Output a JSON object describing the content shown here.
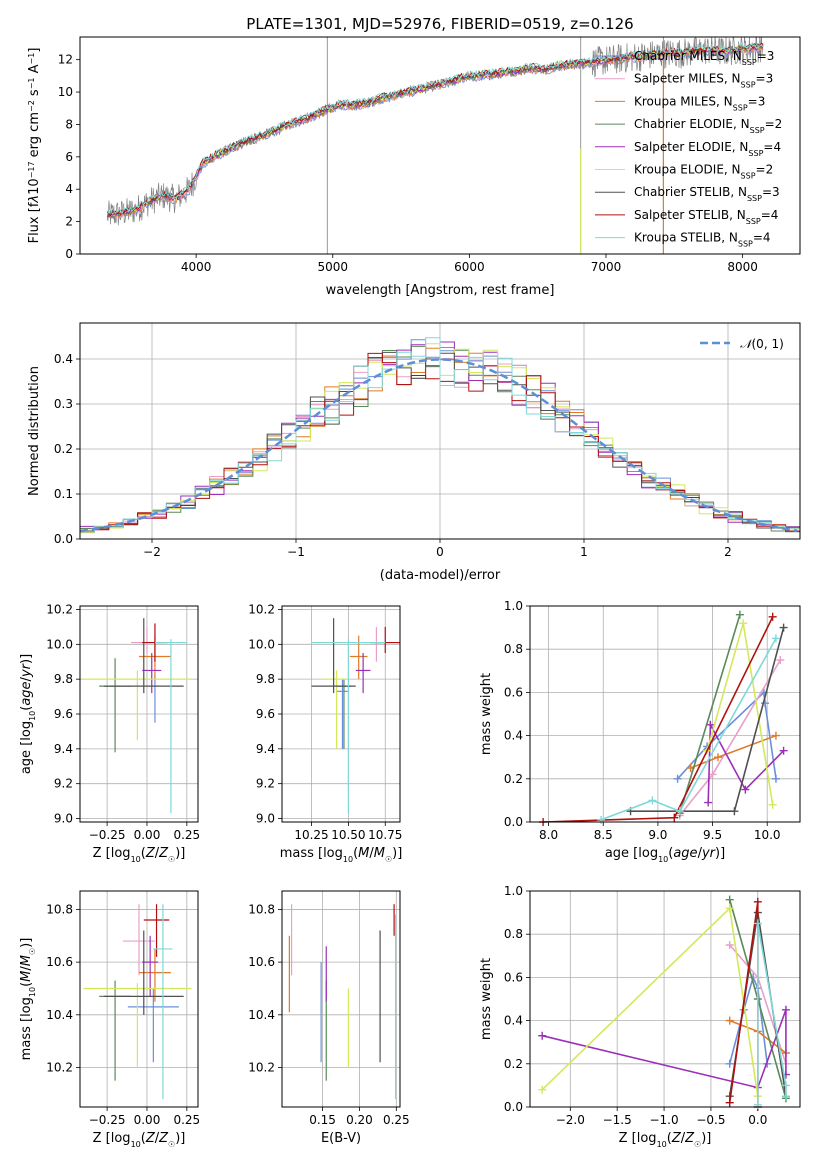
{
  "chart_data": [
    {
      "panel": "spectrum",
      "type": "line",
      "title": "PLATE=1301, MJD=52976, FIBERID=0519, z=0.126",
      "xlabel": "wavelength [Angstrom, rest frame]",
      "ylabel_html": "Flux [f<tspan font-style='italic'>λ</tspan>10<tspan baseline-shift='super' font-size='8'>−17</tspan> erg cm<tspan baseline-shift='super' font-size='8'>−2</tspan> s<tspan baseline-shift='super' font-size='8'>−1</tspan> A<tspan baseline-shift='super' font-size='8'>−1</tspan>]",
      "xlim": [
        3150,
        8420
      ],
      "ylim": [
        0,
        13.4
      ],
      "xticks": [
        4000,
        5000,
        6000,
        7000,
        8000
      ],
      "yticks": [
        0,
        2,
        4,
        6,
        8,
        10,
        12
      ],
      "grid": false,
      "legend_position": "top-right",
      "data_color": "#808080",
      "spectrum_x": [
        3350,
        3450,
        3550,
        3650,
        3750,
        3850,
        3950,
        4050,
        4150,
        4250,
        4350,
        4450,
        4550,
        4650,
        4750,
        4850,
        4950,
        5050,
        5150,
        5250,
        5350,
        5450,
        5550,
        5650,
        5750,
        5850,
        5950,
        6050,
        6150,
        6250,
        6350,
        6450,
        6550,
        6650,
        6750,
        6850,
        6950,
        7050,
        7150,
        7250,
        7350,
        7450,
        7550,
        7650,
        7750,
        7850,
        7950,
        8050,
        8150
      ],
      "spectrum_y": [
        2.4,
        2.5,
        2.7,
        3.2,
        3.6,
        3.4,
        4.0,
        5.6,
        6.1,
        6.5,
        6.9,
        7.2,
        7.5,
        7.9,
        8.2,
        8.5,
        8.9,
        9.2,
        9.2,
        9.3,
        9.6,
        9.8,
        10.0,
        10.2,
        10.4,
        10.6,
        10.9,
        11.0,
        11.1,
        11.2,
        11.3,
        11.5,
        11.4,
        11.6,
        11.7,
        11.8,
        11.9,
        12.0,
        12.1,
        12.2,
        12.3,
        12.4,
        12.4,
        12.5,
        12.6,
        12.5,
        12.6,
        12.7,
        12.8
      ],
      "series": [
        {
          "name": "Chabrier MILES, N_SSP=3",
          "label_main": "Chabrier MILES, N",
          "label_sub": "SSP",
          "label_tail": "=3",
          "color": "#6a8fd8"
        },
        {
          "name": "Salpeter MILES, N_SSP=3",
          "label_main": "Salpeter MILES, N",
          "label_sub": "SSP",
          "label_tail": "=3",
          "color": "#e8a0c8"
        },
        {
          "name": "Kroupa MILES, N_SSP=3",
          "label_main": "Kroupa MILES, N",
          "label_sub": "SSP",
          "label_tail": "=3",
          "color": "#e07b2a"
        },
        {
          "name": "Chabrier ELODIE, N_SSP=2",
          "label_main": "Chabrier ELODIE, N",
          "label_sub": "SSP",
          "label_tail": "=2",
          "color": "#5a8a5a"
        },
        {
          "name": "Salpeter ELODIE, N_SSP=4",
          "label_main": "Salpeter ELODIE, N",
          "label_sub": "SSP",
          "label_tail": "=4",
          "color": "#9b30b8"
        },
        {
          "name": "Kroupa ELODIE, N_SSP=2",
          "label_main": "Kroupa ELODIE, N",
          "label_sub": "SSP",
          "label_tail": "=2",
          "color": "#d4e85a"
        },
        {
          "name": "Chabrier STELIB, N_SSP=3",
          "label_main": "Chabrier STELIB, N",
          "label_sub": "SSP",
          "label_tail": "=3",
          "color": "#505050"
        },
        {
          "name": "Salpeter STELIB, N_SSP=4",
          "label_main": "Salpeter STELIB, N",
          "label_sub": "SSP",
          "label_tail": "=4",
          "color": "#b01010"
        },
        {
          "name": "Kroupa STELIB, N_SSP=4",
          "label_main": "Kroupa STELIB, N",
          "label_sub": "SSP",
          "label_tail": "=4",
          "color": "#7fd8d8"
        }
      ]
    },
    {
      "panel": "residuals",
      "type": "line",
      "xlabel": "(data-model)/error",
      "ylabel": "Normed distribution",
      "xlim": [
        -2.5,
        2.5
      ],
      "ylim": [
        0,
        0.48
      ],
      "xticks": [
        -2,
        -1,
        0,
        1,
        2
      ],
      "xtick_labels": [
        "−2",
        "−1",
        "0",
        "1",
        "2"
      ],
      "yticks": [
        0.0,
        0.1,
        0.2,
        0.3,
        0.4
      ],
      "ytick_labels": [
        "0.0",
        "0.1",
        "0.2",
        "0.3",
        "0.4"
      ],
      "grid": true,
      "legend_position": "top-right",
      "legend_label": "N(0,1)",
      "gaussian_color": "#5b8fd6",
      "bin_width": 0.1
    },
    {
      "panel": "Z-age",
      "type": "scatter",
      "xlabel": "Z [log10(Z/Z☉)]",
      "ylabel": "age  [log10(age/yr)]",
      "xlim": [
        -0.42,
        0.32
      ],
      "ylim": [
        8.98,
        10.22
      ],
      "xticks": [
        -0.25,
        0.0,
        0.25
      ],
      "xtick_labels": [
        "−0.25",
        "0.00",
        "0.25"
      ],
      "yticks": [
        9.0,
        9.2,
        9.4,
        9.6,
        9.8,
        10.0,
        10.2
      ],
      "ytick_labels": [
        "9.0",
        "9.2",
        "9.4",
        "9.6",
        "9.8",
        "10.0",
        "10.2"
      ],
      "points": [
        {
          "x": 0.05,
          "y": 9.73,
          "xerr": 0.0,
          "ylo": 9.55,
          "yhi": 9.82,
          "color": "#6a8fd8"
        },
        {
          "x": 0.0,
          "y": 10.01,
          "xerr": 0.1,
          "ylo": 9.95,
          "yhi": 10.1,
          "color": "#e8a0c8"
        },
        {
          "x": 0.05,
          "y": 9.93,
          "xerr": 0.1,
          "ylo": 9.8,
          "yhi": 10.05,
          "color": "#e07b2a"
        },
        {
          "x": -0.2,
          "y": 9.76,
          "xerr": 0.1,
          "ylo": 9.38,
          "yhi": 9.92,
          "color": "#5a8a5a"
        },
        {
          "x": 0.03,
          "y": 9.85,
          "xerr": 0.06,
          "ylo": 9.72,
          "yhi": 9.95,
          "color": "#9b30b8"
        },
        {
          "x": -0.06,
          "y": 9.8,
          "xerr": 0.34,
          "ylo": 9.45,
          "yhi": 9.85,
          "color": "#d4e85a"
        },
        {
          "x": -0.02,
          "y": 9.76,
          "xerr": 0.25,
          "ylo": 9.72,
          "yhi": 10.15,
          "color": "#505050"
        },
        {
          "x": 0.05,
          "y": 10.01,
          "xerr": 0.08,
          "ylo": 9.9,
          "yhi": 10.12,
          "color": "#b01010"
        },
        {
          "x": 0.15,
          "y": 10.01,
          "xerr": 0.1,
          "ylo": 9.03,
          "yhi": 10.03,
          "color": "#7fd8d8"
        }
      ]
    },
    {
      "panel": "mass-age",
      "type": "scatter",
      "xlabel": "mass [log10(M/M☉)]",
      "ylabel": "",
      "xlim": [
        10.05,
        10.85
      ],
      "ylim": [
        8.98,
        10.22
      ],
      "xticks": [
        10.25,
        10.5,
        10.75
      ],
      "xtick_labels": [
        "10.25",
        "10.50",
        "10.75"
      ],
      "yticks": [
        9.0,
        9.2,
        9.4,
        9.6,
        9.8,
        10.0,
        10.2
      ],
      "ytick_labels": [
        "9.0",
        "9.2",
        "9.4",
        "9.6",
        "9.8",
        "10.0",
        "10.2"
      ],
      "points": [
        {
          "x": 10.46,
          "y": 9.73,
          "xerr": 0.04,
          "ylo": 9.4,
          "yhi": 9.8,
          "color": "#6a8fd8"
        },
        {
          "x": 10.69,
          "y": 10.01,
          "xerr": 0.08,
          "ylo": 9.9,
          "yhi": 10.1,
          "color": "#e8a0c8"
        },
        {
          "x": 10.57,
          "y": 9.93,
          "xerr": 0.06,
          "ylo": 9.8,
          "yhi": 10.05,
          "color": "#e07b2a"
        },
        {
          "x": 10.47,
          "y": 9.76,
          "xerr": 0.05,
          "ylo": 9.4,
          "yhi": 9.8,
          "color": "#5a8a5a"
        },
        {
          "x": 10.6,
          "y": 9.85,
          "xerr": 0.05,
          "ylo": 9.72,
          "yhi": 9.95,
          "color": "#9b30b8"
        },
        {
          "x": 10.42,
          "y": 9.8,
          "xerr": 0.08,
          "ylo": 9.4,
          "yhi": 9.85,
          "color": "#d4e85a"
        },
        {
          "x": 10.4,
          "y": 9.76,
          "xerr": 0.15,
          "ylo": 9.72,
          "yhi": 10.15,
          "color": "#505050"
        },
        {
          "x": 10.75,
          "y": 10.01,
          "xerr": 0.1,
          "ylo": 9.95,
          "yhi": 10.1,
          "color": "#b01010"
        },
        {
          "x": 10.5,
          "y": 10.01,
          "xerr": 0.25,
          "ylo": 9.03,
          "yhi": 10.03,
          "color": "#7fd8d8"
        }
      ]
    },
    {
      "panel": "weight-age",
      "type": "line",
      "xlabel": "age  [log10(age/yr)]",
      "ylabel": "mass weight",
      "xlim": [
        7.83,
        10.3
      ],
      "ylim": [
        0,
        1.0
      ],
      "xticks": [
        8.0,
        8.5,
        9.0,
        9.5,
        10.0
      ],
      "xtick_labels": [
        "8.0",
        "8.5",
        "9.0",
        "9.5",
        "10.0"
      ],
      "yticks": [
        0.0,
        0.2,
        0.4,
        0.6,
        0.8,
        1.0
      ],
      "ytick_labels": [
        "0.0",
        "0.2",
        "0.4",
        "0.6",
        "0.8",
        "1.0"
      ],
      "series": [
        {
          "color": "#6a8fd8",
          "x": [
            9.18,
            9.45,
            9.97,
            9.98,
            10.08
          ],
          "y": [
            0.2,
            0.35,
            0.6,
            0.55,
            0.2
          ]
        },
        {
          "color": "#e8a0c8",
          "x": [
            9.2,
            9.5,
            10.12
          ],
          "y": [
            0.03,
            0.22,
            0.75
          ]
        },
        {
          "color": "#e07b2a",
          "x": [
            9.3,
            9.55,
            10.08
          ],
          "y": [
            0.25,
            0.3,
            0.4
          ]
        },
        {
          "color": "#5a8a5a",
          "x": [
            9.2,
            9.75
          ],
          "y": [
            0.04,
            0.96
          ]
        },
        {
          "color": "#9b30b8",
          "x": [
            9.46,
            9.48,
            9.8,
            10.15
          ],
          "y": [
            0.09,
            0.45,
            0.15,
            0.33
          ]
        },
        {
          "color": "#d4e85a",
          "x": [
            9.45,
            9.78,
            10.05
          ],
          "y": [
            0.33,
            0.92,
            0.08
          ]
        },
        {
          "color": "#505050",
          "x": [
            8.75,
            9.7,
            10.15
          ],
          "y": [
            0.05,
            0.05,
            0.9
          ]
        },
        {
          "color": "#b01010",
          "x": [
            7.95,
            9.15,
            10.05
          ],
          "y": [
            0.0,
            0.02,
            0.95
          ]
        },
        {
          "color": "#7fd8d8",
          "x": [
            8.48,
            8.95,
            9.2,
            10.08
          ],
          "y": [
            0.01,
            0.1,
            0.05,
            0.85
          ]
        }
      ]
    },
    {
      "panel": "Z-mass",
      "type": "scatter",
      "xlabel": "Z [log10(Z/Z☉)]",
      "ylabel": "mass [log10(M/M☉)]",
      "xlim": [
        -0.42,
        0.32
      ],
      "ylim": [
        10.05,
        10.87
      ],
      "xticks": [
        -0.25,
        0.0,
        0.25
      ],
      "xtick_labels": [
        "−0.25",
        "0.00",
        "0.25"
      ],
      "yticks": [
        10.2,
        10.4,
        10.6,
        10.8
      ],
      "ytick_labels": [
        "10.2",
        "10.4",
        "10.6",
        "10.8"
      ],
      "points": [
        {
          "x": 0.04,
          "y": 10.43,
          "xerr": 0.16,
          "ylo": 10.22,
          "yhi": 10.5,
          "color": "#6a8fd8"
        },
        {
          "x": -0.05,
          "y": 10.68,
          "xerr": 0.1,
          "ylo": 10.55,
          "yhi": 10.82,
          "color": "#e8a0c8"
        },
        {
          "x": 0.05,
          "y": 10.56,
          "xerr": 0.1,
          "ylo": 10.45,
          "yhi": 10.65,
          "color": "#e07b2a"
        },
        {
          "x": -0.2,
          "y": 10.47,
          "xerr": 0.1,
          "ylo": 10.15,
          "yhi": 10.53,
          "color": "#5a8a5a"
        },
        {
          "x": 0.02,
          "y": 10.6,
          "xerr": 0.05,
          "ylo": 10.47,
          "yhi": 10.7,
          "color": "#9b30b8"
        },
        {
          "x": -0.06,
          "y": 10.5,
          "xerr": 0.34,
          "ylo": 10.2,
          "yhi": 10.52,
          "color": "#d4e85a"
        },
        {
          "x": -0.02,
          "y": 10.47,
          "xerr": 0.25,
          "ylo": 10.4,
          "yhi": 10.72,
          "color": "#505050"
        },
        {
          "x": 0.06,
          "y": 10.76,
          "xerr": 0.08,
          "ylo": 10.62,
          "yhi": 10.82,
          "color": "#b01010"
        },
        {
          "x": 0.1,
          "y": 10.65,
          "xerr": 0.06,
          "ylo": 10.08,
          "yhi": 10.82,
          "color": "#7fd8d8"
        }
      ]
    },
    {
      "panel": "EBV-mass",
      "type": "scatter",
      "xlabel": "E(B-V)",
      "ylabel": "",
      "xlim": [
        0.095,
        0.255
      ],
      "ylim": [
        10.05,
        10.87
      ],
      "xticks": [
        0.15,
        0.2,
        0.25
      ],
      "xtick_labels": [
        "0.15",
        "0.20",
        "0.25"
      ],
      "yticks": [
        10.2,
        10.4,
        10.6,
        10.8
      ],
      "ytick_labels": [
        "10.2",
        "10.4",
        "10.6",
        "10.8"
      ],
      "points": [
        {
          "x": 0.148,
          "y": 10.43,
          "xerr": 0.0,
          "ylo": 10.22,
          "yhi": 10.6,
          "color": "#6a8fd8"
        },
        {
          "x": 0.108,
          "y": 10.68,
          "xerr": 0.0,
          "ylo": 10.55,
          "yhi": 10.82,
          "color": "#e8a0c8"
        },
        {
          "x": 0.105,
          "y": 10.56,
          "xerr": 0.0,
          "ylo": 10.41,
          "yhi": 10.7,
          "color": "#e07b2a"
        },
        {
          "x": 0.155,
          "y": 10.35,
          "xerr": 0.0,
          "ylo": 10.15,
          "yhi": 10.53,
          "color": "#5a8a5a"
        },
        {
          "x": 0.155,
          "y": 10.55,
          "xerr": 0.0,
          "ylo": 10.45,
          "yhi": 10.66,
          "color": "#9b30b8"
        },
        {
          "x": 0.185,
          "y": 10.4,
          "xerr": 0.0,
          "ylo": 10.2,
          "yhi": 10.5,
          "color": "#d4e85a"
        },
        {
          "x": 0.228,
          "y": 10.47,
          "xerr": 0.0,
          "ylo": 10.22,
          "yhi": 10.72,
          "color": "#505050"
        },
        {
          "x": 0.247,
          "y": 10.76,
          "xerr": 0.0,
          "ylo": 10.7,
          "yhi": 10.82,
          "color": "#b01010"
        },
        {
          "x": 0.249,
          "y": 10.5,
          "xerr": 0.0,
          "ylo": 10.08,
          "yhi": 10.78,
          "color": "#7fd8d8"
        }
      ]
    },
    {
      "panel": "weight-Z",
      "type": "line",
      "xlabel": "Z [log10(Z/Z☉)]",
      "ylabel": "mass weight",
      "xlim": [
        -2.43,
        0.45
      ],
      "ylim": [
        0,
        1.0
      ],
      "xticks": [
        -2.0,
        -1.5,
        -1.0,
        -0.5,
        0.0
      ],
      "xtick_labels": [
        "−2.0",
        "−1.5",
        "−1.0",
        "−0.5",
        "0.0"
      ],
      "yticks": [
        0.0,
        0.2,
        0.4,
        0.6,
        0.8,
        1.0
      ],
      "ytick_labels": [
        "0.0",
        "0.2",
        "0.4",
        "0.6",
        "0.8",
        "1.0"
      ],
      "series": [
        {
          "color": "#6a8fd8",
          "x": [
            -0.3,
            -0.15,
            -0.05,
            0.0,
            0.1
          ],
          "y": [
            0.2,
            0.45,
            0.6,
            0.55,
            0.2
          ]
        },
        {
          "color": "#e8a0c8",
          "x": [
            -0.3,
            0.0,
            0.3
          ],
          "y": [
            0.75,
            0.6,
            0.2
          ]
        },
        {
          "color": "#e07b2a",
          "x": [
            -0.3,
            0.0,
            0.3
          ],
          "y": [
            0.4,
            0.35,
            0.25
          ]
        },
        {
          "color": "#5a8a5a",
          "x": [
            -0.3,
            0.0,
            0.3
          ],
          "y": [
            0.96,
            0.5,
            0.04
          ]
        },
        {
          "color": "#9b30b8",
          "x": [
            -2.3,
            0.0,
            0.3,
            0.3
          ],
          "y": [
            0.33,
            0.09,
            0.45,
            0.15
          ]
        },
        {
          "color": "#d4e85a",
          "x": [
            -2.3,
            -0.3,
            0.0
          ],
          "y": [
            0.08,
            0.92,
            0.05
          ]
        },
        {
          "color": "#505050",
          "x": [
            -0.3,
            0.0,
            0.3
          ],
          "y": [
            0.05,
            0.9,
            0.05
          ]
        },
        {
          "color": "#b01010",
          "x": [
            -0.3,
            0.0,
            0.0
          ],
          "y": [
            0.02,
            0.95,
            0.0
          ]
        },
        {
          "color": "#7fd8d8",
          "x": [
            0.0,
            0.0,
            0.3,
            0.3
          ],
          "y": [
            0.01,
            0.85,
            0.1,
            0.05
          ]
        }
      ]
    }
  ]
}
